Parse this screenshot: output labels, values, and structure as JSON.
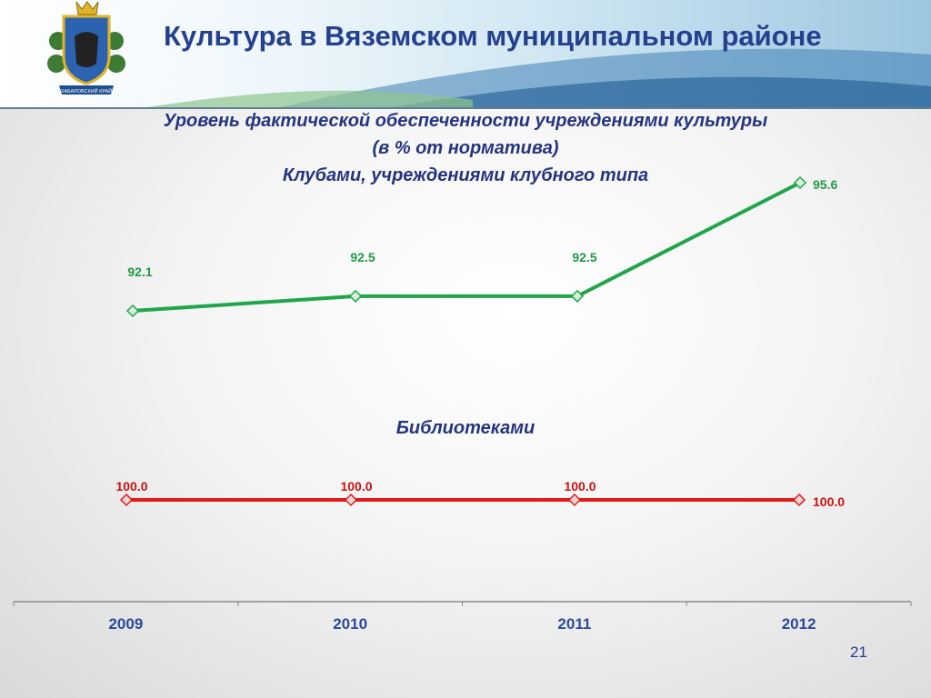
{
  "header": {
    "title": "Культура в Вяземском муниципальном районе",
    "emblem_icon": "coat-of-arms-icon",
    "emblem_text": "ХАБАРОВСКИЙ КРАЙ"
  },
  "subtitle": {
    "line1": "Уровень фактической обеспеченности учреждениями культуры",
    "line2": "(в % от норматива)",
    "line3": "Клубами, учреждениями клубного типа"
  },
  "section2": {
    "title": "Библиотеками"
  },
  "page_number": "21",
  "chart_data": [
    {
      "type": "line",
      "title": "Клубами, учреждениями клубного типа",
      "categories": [
        "2009",
        "2010",
        "2011",
        "2012"
      ],
      "values": [
        92.1,
        92.5,
        92.5,
        95.6
      ],
      "labels": [
        "92.1",
        "92.5",
        "92.5",
        "95.6"
      ],
      "color": "#1fa64a",
      "grid": false,
      "legend": "none"
    },
    {
      "type": "line",
      "title": "Библиотеками",
      "categories": [
        "2009",
        "2010",
        "2011",
        "2012"
      ],
      "values": [
        100.0,
        100.0,
        100.0,
        100.0
      ],
      "labels": [
        "100.0",
        "100.0",
        "100.0",
        "100.0"
      ],
      "color": "#e01b1b",
      "grid": false,
      "legend": "none"
    }
  ],
  "colors": {
    "title": "#24408f",
    "subtitle": "#24357f",
    "axis_label": "#2a4a9a"
  }
}
